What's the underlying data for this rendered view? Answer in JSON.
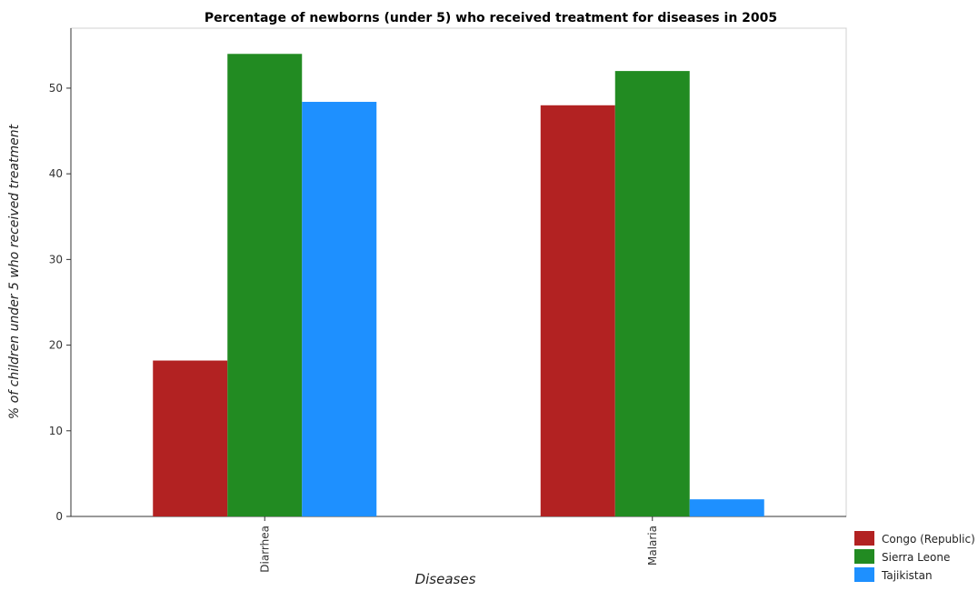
{
  "chart_data": {
    "type": "bar",
    "title": "Percentage of newborns (under 5) who received treatment for diseases in 2005",
    "xlabel": "Diseases",
    "ylabel": "% of children under 5 who received treatment",
    "categories": [
      "Diarrhea",
      "Malaria"
    ],
    "series": [
      {
        "name": "Congo (Republic)",
        "color": "#b22222",
        "values": [
          18.2,
          48
        ]
      },
      {
        "name": "Sierra Leone",
        "color": "#228b22",
        "values": [
          54,
          52
        ]
      },
      {
        "name": "Tajikistan",
        "color": "#1e90ff",
        "values": [
          48.4,
          2
        ]
      }
    ],
    "ylim": [
      0,
      57
    ],
    "yticks": [
      0,
      10,
      20,
      30,
      40,
      50
    ],
    "grid": false,
    "legend_position": "bottom-right"
  }
}
